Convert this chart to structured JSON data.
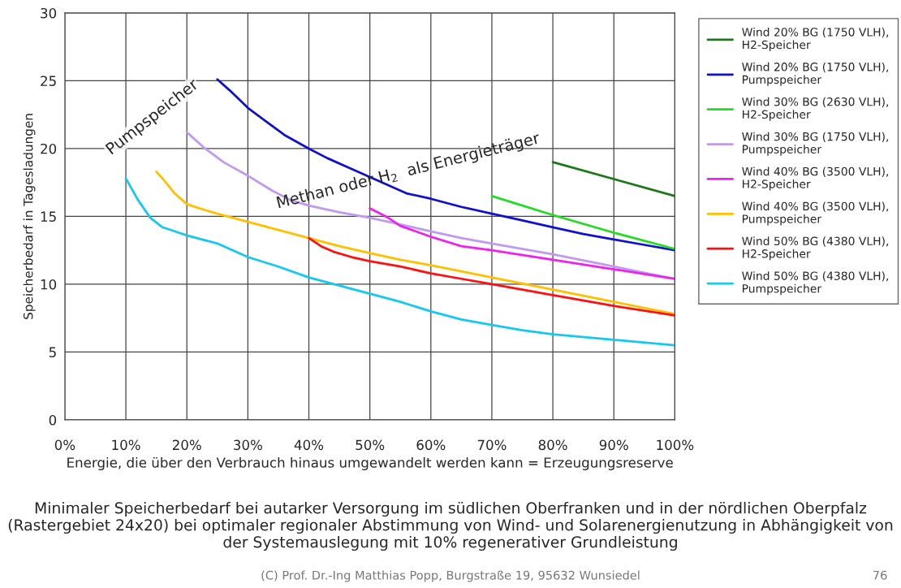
{
  "chart_data": {
    "type": "line",
    "title": "Minimaler Speicherbedarf bei autarker Versorgung im südlichen Oberfranken und in der nördlichen Oberpfalz (Rastergebiet 24x20) bei optimaler regionaler Abstimmung von Wind- und Solarenergienutzung in Abhängigkeit von der Systemauslegung mit 10% regenerativer Grundleistung",
    "xlabel": "Energie, die über den Verbrauch hinaus umgewandelt werden kann = Erzeugungsreserve",
    "ylabel": "Speicherbedarf in Tagesladungen",
    "annotations": [
      "Pumpspeicher",
      "Methan oder H$_{2}$  als Energieträger",
      "(C) Prof. Dr.-Ing Matthias Popp, Burgstraße 19, 95632 Wunsiedel",
      "76"
    ],
    "xlim": [
      0,
      100
    ],
    "ylim": [
      0,
      30
    ],
    "xticks": [
      {
        "value": 0,
        "label": "0%"
      },
      {
        "value": 10,
        "label": "10%"
      },
      {
        "value": 20,
        "label": "20%"
      },
      {
        "value": 30,
        "label": "30%"
      },
      {
        "value": 40,
        "label": "40%"
      },
      {
        "value": 50,
        "label": "50%"
      },
      {
        "value": 60,
        "label": "60%"
      },
      {
        "value": 70,
        "label": "70%"
      },
      {
        "value": 80,
        "label": "80%"
      },
      {
        "value": 90,
        "label": "90%"
      },
      {
        "value": 100,
        "label": "100%"
      }
    ],
    "yticks": [
      0,
      5,
      10,
      15,
      20,
      25,
      30
    ],
    "grid": true,
    "legend": "right",
    "marker": "none",
    "line_style": "solid",
    "series": [
      {
        "name": "Wind 20% BG (1750 VLH),\nH2-Speicher",
        "color": "#1a7a1a",
        "x": [
          80,
          100
        ],
        "values": [
          19.0,
          16.5
        ]
      },
      {
        "name": "Wind 20% BG (1750 VLH),\nPumpspeicher",
        "color": "#1010d0",
        "x": [
          25,
          27,
          30,
          33,
          36,
          40,
          43,
          47,
          50,
          53,
          56,
          60,
          65,
          70,
          75,
          80,
          85,
          90,
          95,
          100
        ],
        "values": [
          25.1,
          24.3,
          23.0,
          22.0,
          21.0,
          20.0,
          19.3,
          18.5,
          17.9,
          17.3,
          16.7,
          16.3,
          15.7,
          15.2,
          14.7,
          14.2,
          13.7,
          13.3,
          12.9,
          12.5
        ]
      },
      {
        "name": "Wind 30% BG (2630 VLH),\nH2-Speicher",
        "color": "#22dd22",
        "x": [
          70,
          80,
          90,
          100
        ],
        "values": [
          16.5,
          15.1,
          13.8,
          12.6
        ]
      },
      {
        "name": "Wind 30% BG (1750 VLH),\nPumpspeicher",
        "color": "#c09af0",
        "x": [
          20,
          23,
          26,
          30,
          34,
          37,
          40,
          45,
          50,
          55,
          60,
          65,
          70,
          80,
          90,
          100
        ],
        "values": [
          21.2,
          20.0,
          19.0,
          18.0,
          16.9,
          16.2,
          15.8,
          15.3,
          14.9,
          14.4,
          13.9,
          13.4,
          13.0,
          12.2,
          11.3,
          10.4
        ]
      },
      {
        "name": "Wind 40% BG (3500 VLH),\nH2-Speicher",
        "color": "#ee22ee",
        "x": [
          50,
          53,
          55,
          60,
          65,
          70,
          80,
          90,
          100
        ],
        "values": [
          15.6,
          14.9,
          14.3,
          13.5,
          12.8,
          12.5,
          11.8,
          11.1,
          10.4
        ]
      },
      {
        "name": "Wind 40% BG (3500 VLH),\nPumpspeicher",
        "color": "#ffc000",
        "x": [
          15,
          16,
          18,
          20,
          22,
          25,
          30,
          35,
          40,
          45,
          50,
          55,
          60,
          70,
          80,
          90,
          100
        ],
        "values": [
          18.3,
          17.8,
          16.7,
          15.9,
          15.6,
          15.2,
          14.6,
          14.0,
          13.4,
          12.8,
          12.3,
          11.8,
          11.4,
          10.5,
          9.6,
          8.7,
          7.8
        ]
      },
      {
        "name": "Wind 50% BG (4380 VLH),\nH2-Speicher",
        "color": "#ff1010",
        "x": [
          40,
          42,
          44,
          47,
          50,
          55,
          60,
          65,
          70,
          80,
          90,
          100
        ],
        "values": [
          13.4,
          12.8,
          12.4,
          12.0,
          11.7,
          11.3,
          10.8,
          10.4,
          10.0,
          9.2,
          8.4,
          7.7
        ]
      },
      {
        "name": "Wind 50% BG (4380 VLH),\nPumpspeicher",
        "color": "#14c8f0",
        "x": [
          10,
          12,
          14,
          16,
          18,
          20,
          25,
          30,
          35,
          40,
          45,
          50,
          55,
          60,
          65,
          70,
          75,
          80,
          90,
          100
        ],
        "values": [
          17.8,
          16.2,
          14.9,
          14.2,
          13.9,
          13.6,
          13.0,
          12.0,
          11.3,
          10.5,
          9.9,
          9.3,
          8.7,
          8.0,
          7.4,
          7.0,
          6.6,
          6.3,
          5.9,
          5.5
        ]
      }
    ]
  }
}
